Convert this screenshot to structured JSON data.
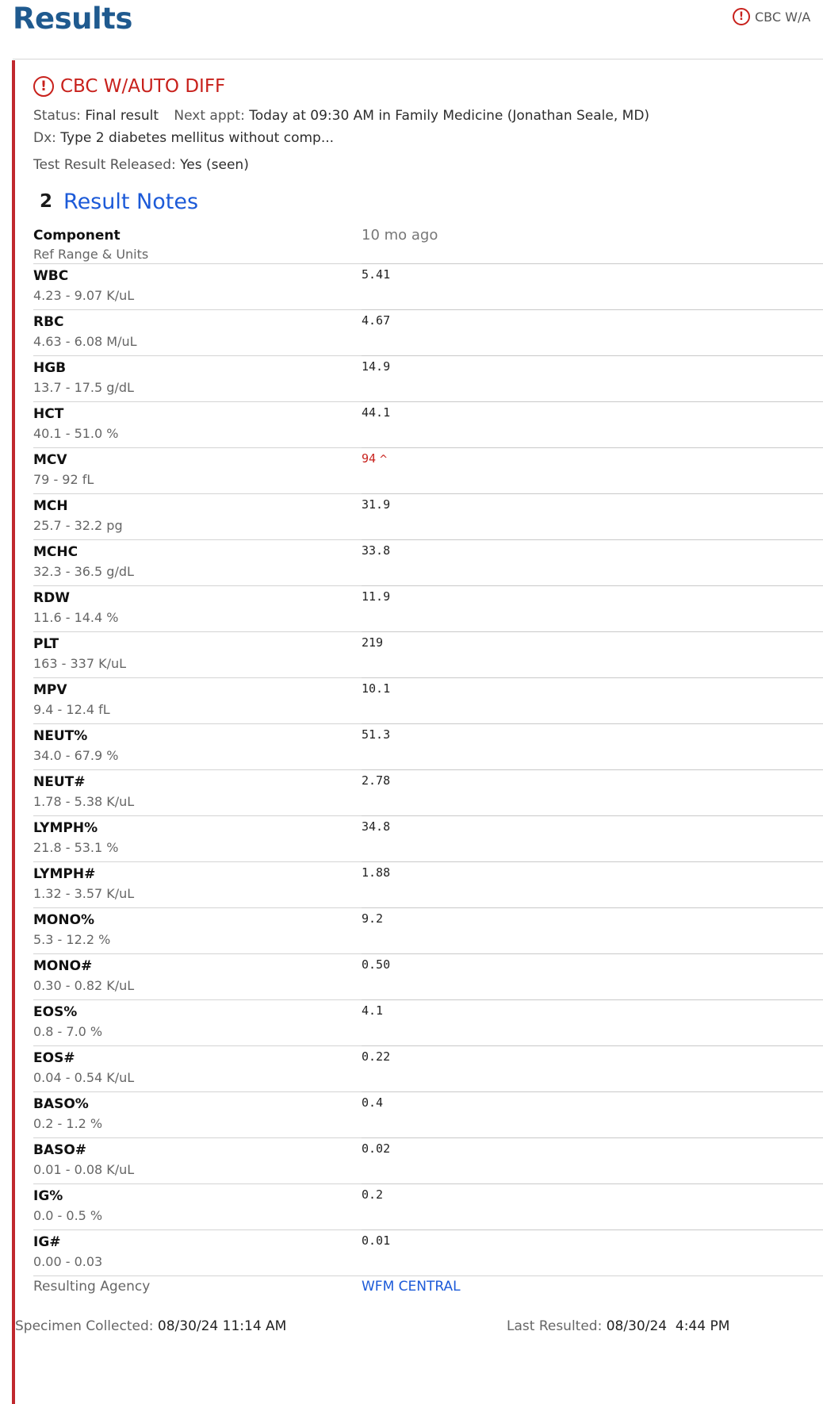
{
  "header": {
    "title": "Results",
    "top_right_label": "CBC W/A"
  },
  "card": {
    "title": "CBC W/AUTO DIFF",
    "status_label": "Status:",
    "status_value": "Final result",
    "next_appt_label": "Next appt:",
    "next_appt_value": "Today at 09:30 AM in Family Medicine (Jonathan Seale, MD)",
    "dx_label": "Dx:",
    "dx_value": "Type 2 diabetes mellitus without comp...",
    "released_label": "Test Result Released:",
    "released_value": "Yes (seen)",
    "notes_count": "2",
    "notes_label": "Result Notes"
  },
  "table": {
    "header_component": "Component",
    "header_ref": "Ref Range & Units",
    "header_date": "10 mo ago",
    "rows": [
      {
        "name": "WBC",
        "ref": "4.23 - 9.07 K/uL",
        "value": "5.41"
      },
      {
        "name": "RBC",
        "ref": "4.63 - 6.08 M/uL",
        "value": "4.67"
      },
      {
        "name": "HGB",
        "ref": "13.7 - 17.5 g/dL",
        "value": "14.9"
      },
      {
        "name": "HCT",
        "ref": "40.1 - 51.0 %",
        "value": "44.1"
      },
      {
        "name": "MCV",
        "ref": "79 - 92 fL",
        "value": "94",
        "flag": "^"
      },
      {
        "name": "MCH",
        "ref": "25.7 - 32.2 pg",
        "value": "31.9"
      },
      {
        "name": "MCHC",
        "ref": "32.3 - 36.5 g/dL",
        "value": "33.8"
      },
      {
        "name": "RDW",
        "ref": "11.6 - 14.4 %",
        "value": "11.9"
      },
      {
        "name": "PLT",
        "ref": "163 - 337 K/uL",
        "value": "219"
      },
      {
        "name": "MPV",
        "ref": "9.4 - 12.4 fL",
        "value": "10.1"
      },
      {
        "name": "NEUT%",
        "ref": "34.0 - 67.9 %",
        "value": "51.3"
      },
      {
        "name": "NEUT#",
        "ref": "1.78 - 5.38 K/uL",
        "value": "2.78"
      },
      {
        "name": "LYMPH%",
        "ref": "21.8 - 53.1 %",
        "value": "34.8"
      },
      {
        "name": "LYMPH#",
        "ref": "1.32 - 3.57 K/uL",
        "value": "1.88"
      },
      {
        "name": "MONO%",
        "ref": "5.3 - 12.2 %",
        "value": "9.2"
      },
      {
        "name": "MONO#",
        "ref": "0.30 - 0.82 K/uL",
        "value": "0.50"
      },
      {
        "name": "EOS%",
        "ref": "0.8 - 7.0 %",
        "value": "4.1"
      },
      {
        "name": "EOS#",
        "ref": "0.04 - 0.54 K/uL",
        "value": "0.22"
      },
      {
        "name": "BASO%",
        "ref": "0.2 - 1.2 %",
        "value": "0.4"
      },
      {
        "name": "BASO#",
        "ref": "0.01 - 0.08 K/uL",
        "value": "0.02"
      },
      {
        "name": "IG%",
        "ref": "0.0 - 0.5 %",
        "value": "0.2"
      },
      {
        "name": "IG#",
        "ref": "0.00 - 0.03",
        "value": "0.01"
      }
    ],
    "agency_label": "Resulting Agency",
    "agency_value": "WFM CENTRAL"
  },
  "footer": {
    "collected_label": "Specimen Collected:",
    "collected_value": "08/30/24 11:14 AM",
    "resulted_label": "Last Resulted:",
    "resulted_value": "08/30/24  4:44 PM"
  },
  "colors": {
    "title_blue": "#1f5a8f",
    "alert_red": "#c8211c",
    "link_blue": "#1c5ad8"
  }
}
